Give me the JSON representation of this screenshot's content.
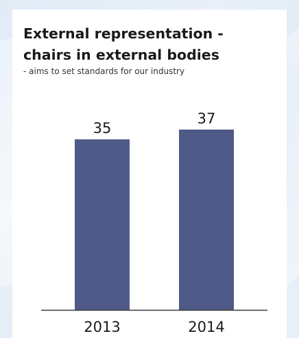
{
  "colors": {
    "bar": "#505a88",
    "baseline": "#3a3a3a",
    "card": "#ffffff",
    "text": "#1a1a1a"
  },
  "chart_data": {
    "type": "bar",
    "title": "External representation -\nchairs in external bodies",
    "subtitle": "- aims to set standards for our industry",
    "xlabel": "",
    "ylabel": "",
    "categories": [
      "2013",
      "2014"
    ],
    "values": [
      35,
      37
    ],
    "data_labels": [
      "35",
      "37"
    ],
    "ylim": [
      0,
      37
    ],
    "grid": false,
    "legend": "none"
  }
}
